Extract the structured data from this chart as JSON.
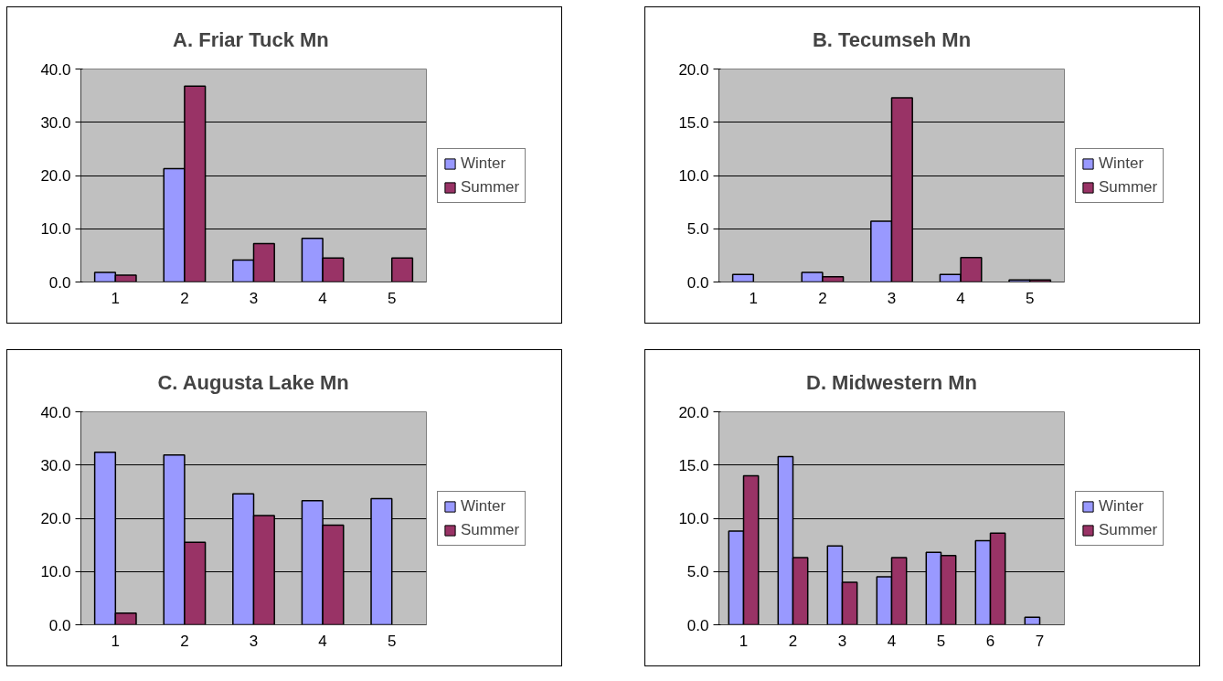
{
  "chart_data": [
    {
      "type": "bar",
      "title": "A.  Friar Tuck Mn",
      "categories": [
        "1",
        "2",
        "3",
        "4",
        "5"
      ],
      "series": [
        {
          "name": "Winter",
          "color": "#9999ff",
          "values": [
            1.8,
            21.3,
            4.1,
            8.2,
            null
          ]
        },
        {
          "name": "Summer",
          "color": "#993366",
          "values": [
            1.3,
            36.8,
            7.2,
            4.5,
            4.5
          ]
        }
      ],
      "ylim": [
        0,
        40
      ],
      "yticks": [
        {
          "value": 0,
          "label": "0.0"
        },
        {
          "value": 10,
          "label": "10.0"
        },
        {
          "value": 20,
          "label": "20.0"
        },
        {
          "value": 30,
          "label": "30.0"
        },
        {
          "value": 40,
          "label": "40.0"
        }
      ],
      "grid": "y",
      "legend": "right"
    },
    {
      "type": "bar",
      "title": "B. Tecumseh Mn",
      "categories": [
        "1",
        "2",
        "3",
        "4",
        "5"
      ],
      "series": [
        {
          "name": "Winter",
          "color": "#9999ff",
          "values": [
            0.7,
            0.9,
            5.7,
            0.7,
            0.2
          ]
        },
        {
          "name": "Summer",
          "color": "#993366",
          "values": [
            null,
            0.5,
            17.3,
            2.3,
            0.2
          ]
        }
      ],
      "ylim": [
        0,
        20
      ],
      "yticks": [
        {
          "value": 0,
          "label": "0.0"
        },
        {
          "value": 5,
          "label": "5.0"
        },
        {
          "value": 10,
          "label": "10.0"
        },
        {
          "value": 15,
          "label": "15.0"
        },
        {
          "value": 20,
          "label": "20.0"
        }
      ],
      "grid": "y",
      "legend": "right"
    },
    {
      "type": "bar",
      "title": "C. Augusta Lake Mn",
      "categories": [
        "1",
        "2",
        "3",
        "4",
        "5"
      ],
      "series": [
        {
          "name": "Winter",
          "color": "#9999ff",
          "values": [
            32.4,
            31.9,
            24.6,
            23.3,
            23.7
          ]
        },
        {
          "name": "Summer",
          "color": "#993366",
          "values": [
            2.2,
            15.5,
            20.5,
            18.7,
            null
          ]
        }
      ],
      "ylim": [
        0,
        40
      ],
      "yticks": [
        {
          "value": 0,
          "label": "0.0"
        },
        {
          "value": 10,
          "label": "10.0"
        },
        {
          "value": 20,
          "label": "20.0"
        },
        {
          "value": 30,
          "label": "30.0"
        },
        {
          "value": 40,
          "label": "40.0"
        }
      ],
      "grid": "y",
      "legend": "right"
    },
    {
      "type": "bar",
      "title": "D. Midwestern Mn",
      "categories": [
        "1",
        "2",
        "3",
        "4",
        "5",
        "6",
        "7"
      ],
      "series": [
        {
          "name": "Winter",
          "color": "#9999ff",
          "values": [
            8.8,
            15.8,
            7.4,
            4.5,
            6.8,
            7.9,
            0.7
          ]
        },
        {
          "name": "Summer",
          "color": "#993366",
          "values": [
            14.0,
            6.3,
            4.0,
            6.3,
            6.5,
            8.6,
            null
          ]
        }
      ],
      "ylim": [
        0,
        20
      ],
      "yticks": [
        {
          "value": 0,
          "label": "0.0"
        },
        {
          "value": 5,
          "label": "5.0"
        },
        {
          "value": 10,
          "label": "10.0"
        },
        {
          "value": 15,
          "label": "15.0"
        },
        {
          "value": 20,
          "label": "20.0"
        }
      ],
      "grid": "y",
      "legend": "right"
    }
  ]
}
